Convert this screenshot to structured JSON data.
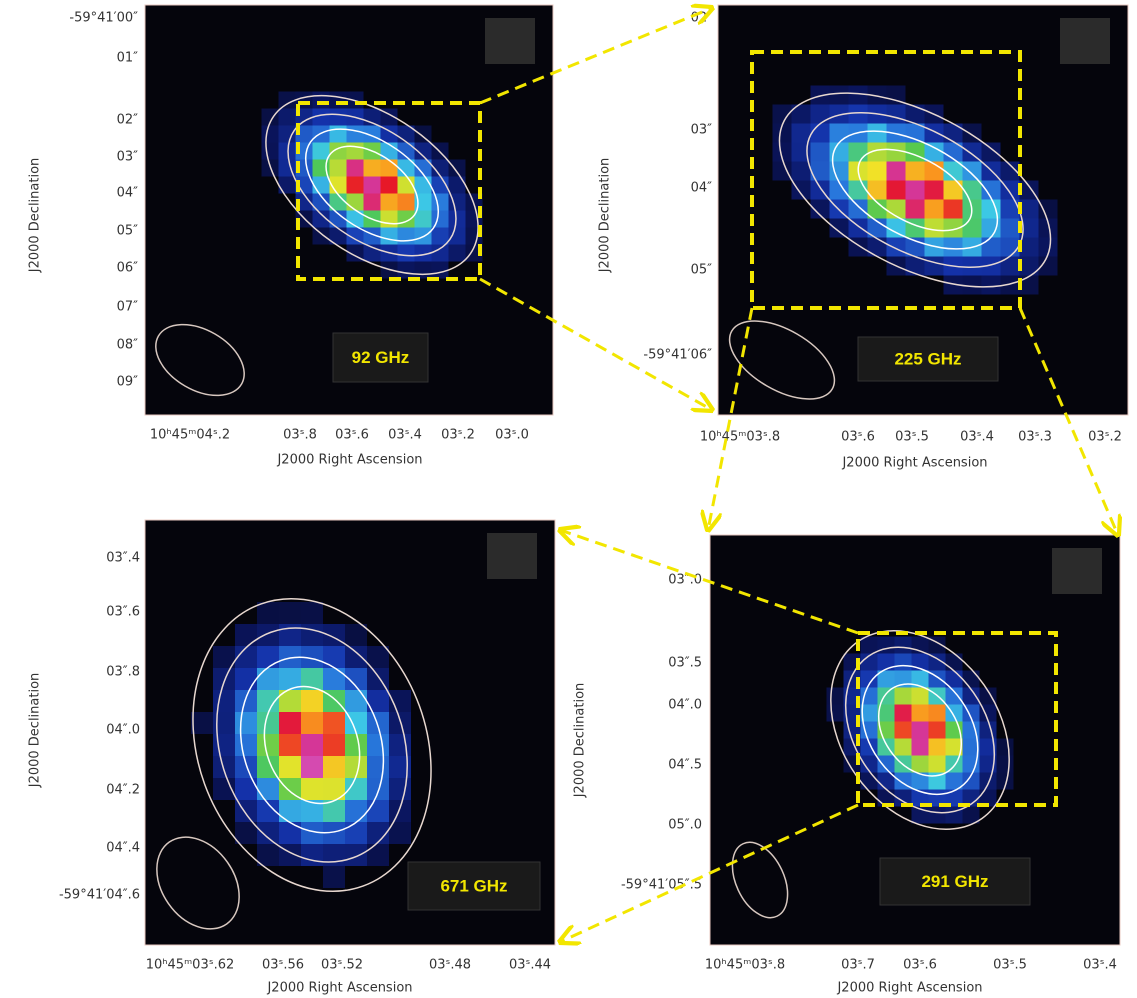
{
  "panels": [
    {
      "frequency": "92 GHz",
      "y_axis_label": "J2000 Declination",
      "x_axis_label": "J2000 Right Ascension",
      "y_ticks": [
        "-59°41′00″",
        "01″",
        "02″",
        "03″",
        "04″",
        "05″",
        "06″",
        "07″",
        "08″",
        "09″"
      ],
      "x_ticks": [
        "10ʰ45ᵐ04ˢ.2",
        "03ˢ.8",
        "03ˢ.6",
        "03ˢ.4",
        "03ˢ.2",
        "03ˢ.0"
      ]
    },
    {
      "frequency": "225 GHz",
      "y_axis_label": "J2000 Declination",
      "x_axis_label": "J2000 Right Ascension",
      "y_ticks": [
        "02″",
        "03″",
        "04″",
        "05″",
        "-59°41′06″"
      ],
      "x_ticks": [
        "10ʰ45ᵐ03ˢ.8",
        "03ˢ.6",
        "03ˢ.5",
        "03ˢ.4",
        "03ˢ.3",
        "03ˢ.2"
      ]
    },
    {
      "frequency": "671 GHz",
      "y_axis_label": "J2000 Declination",
      "x_axis_label": "J2000 Right Ascension",
      "y_ticks": [
        "03″.4",
        "03″.6",
        "03″.8",
        "04″.0",
        "04″.2",
        "04″.4",
        "-59°41′04″.6"
      ],
      "x_ticks": [
        "10ʰ45ᵐ03ˢ.62",
        "03ˢ.56",
        "03ˢ.52",
        "03ˢ.48",
        "03ˢ.44"
      ]
    },
    {
      "frequency": "291 GHz",
      "y_axis_label": "J2000 Declination",
      "x_axis_label": "J2000 Right Ascension",
      "y_ticks": [
        "03″.0",
        "03″.5",
        "04″.0",
        "04″.5",
        "05″.0",
        "-59°41′05″.5"
      ],
      "x_ticks": [
        "10ʰ45ᵐ03ˢ.8",
        "03ˢ.7",
        "03ˢ.6",
        "03ˢ.5",
        "03ˢ.4"
      ]
    }
  ]
}
